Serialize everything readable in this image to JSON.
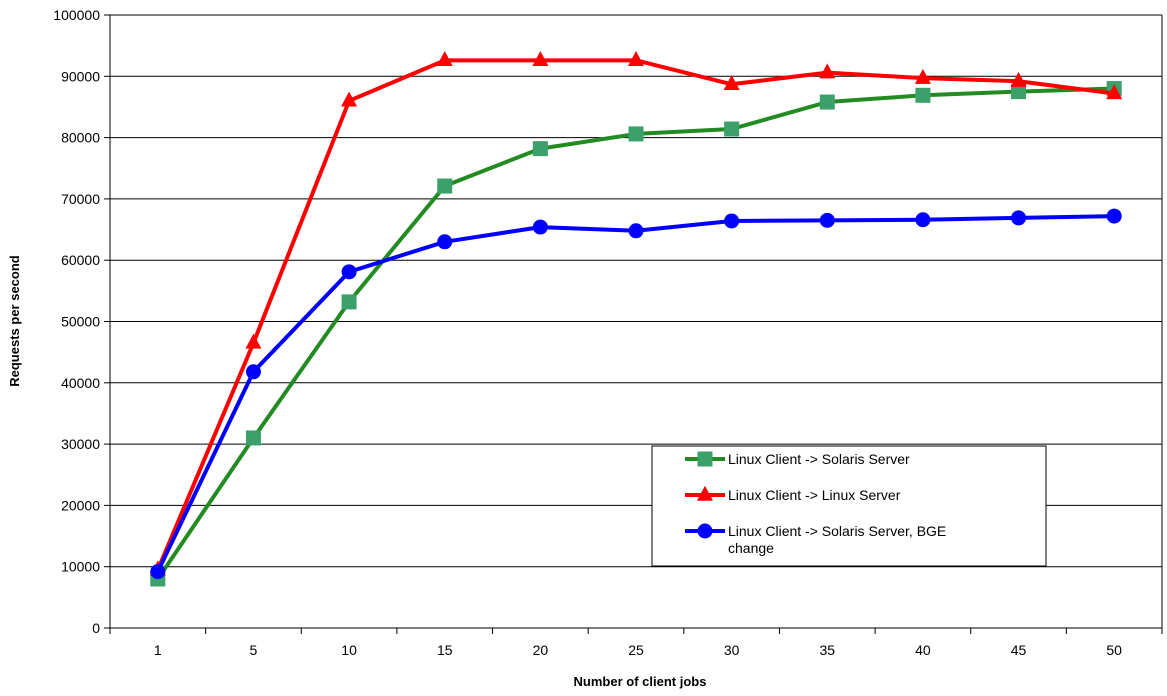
{
  "chart_data": {
    "type": "line",
    "title": "",
    "xlabel": "Number of client jobs",
    "ylabel": "Requests per second",
    "categories": [
      "1",
      "5",
      "10",
      "15",
      "20",
      "25",
      "30",
      "35",
      "40",
      "45",
      "50"
    ],
    "ylim": [
      0,
      100000
    ],
    "yticks": [
      "0",
      "10000",
      "20000",
      "30000",
      "40000",
      "50000",
      "60000",
      "70000",
      "80000",
      "90000",
      "100000"
    ],
    "grid": "horizontal",
    "legend_position": "lower-right",
    "series": [
      {
        "name": "Linux Client -> Solaris Server",
        "color": "#228B22",
        "marker": "square",
        "marker_color": "#3CA06A",
        "values": [
          8000,
          31000,
          53200,
          72100,
          78200,
          80600,
          81400,
          85800,
          86900,
          87500,
          88000
        ]
      },
      {
        "name": "Linux Client -> Linux Server",
        "color": "#FF0000",
        "marker": "triangle",
        "marker_color": "#FF0000",
        "values": [
          9500,
          46500,
          86000,
          92600,
          92600,
          92600,
          88700,
          90600,
          89700,
          89200,
          87200
        ]
      },
      {
        "name": "Linux Client -> Solaris Server, BGE change",
        "name_lines": [
          "Linux Client -> Solaris Server, BGE",
          "change"
        ],
        "color": "#0000FF",
        "marker": "circle",
        "marker_color": "#0000FF",
        "values": [
          9200,
          41800,
          58100,
          63000,
          65400,
          64800,
          66400,
          66500,
          66600,
          66900,
          67200
        ]
      }
    ]
  }
}
